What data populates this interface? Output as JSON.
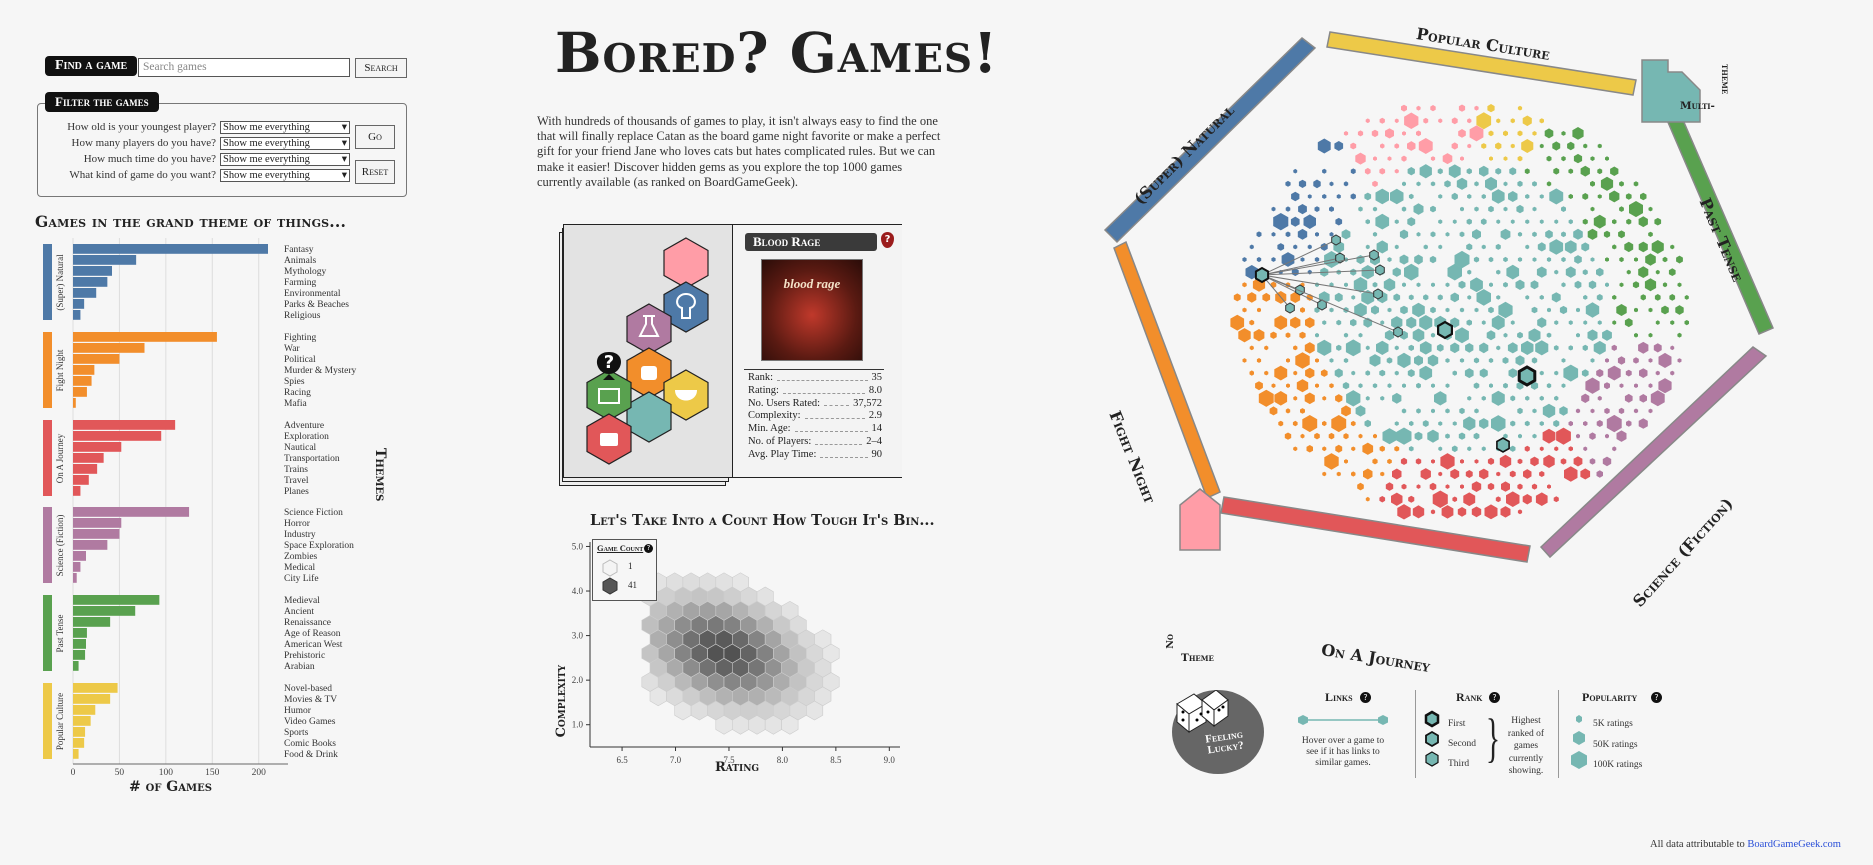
{
  "finder": {
    "button": "Find a game",
    "search_placeholder": "Search games",
    "search_button": "Search"
  },
  "filter": {
    "title": "Filter the games",
    "questions": [
      {
        "label": "How old is your youngest player?",
        "value": "Show me everything"
      },
      {
        "label": "How many players do you have?",
        "value": "Show me everything"
      },
      {
        "label": "How much time do you have?",
        "value": "Show me everything"
      },
      {
        "label": "What kind of game do you want?",
        "value": "Show me everything"
      }
    ],
    "go": "Go",
    "reset": "Reset"
  },
  "themes_chart": {
    "title": "Games in the grand theme of things...",
    "xlabel": "# of Games",
    "side_label": "Themes",
    "ticks": [
      "0",
      "50",
      "100",
      "150",
      "200"
    ]
  },
  "header": {
    "title": "Bored? Games!",
    "intro": "With hundreds of thousands of games to play, it isn't always easy to find the one that will finally replace Catan as the board game night favorite or make a perfect gift for your friend Jane who loves cats but hates complicated rules. But we can make it easier! Discover hidden gems as you explore the top 1000 games currently available (as ranked on BoardGameGeek)."
  },
  "card": {
    "game": "Blood Rage",
    "cover_text": "blood rage",
    "stats": [
      {
        "k": "Rank:",
        "v": "35"
      },
      {
        "k": "Rating:",
        "v": "8.0"
      },
      {
        "k": "No. Users Rated:",
        "v": "37,572"
      },
      {
        "k": "Complexity:",
        "v": "2.9"
      },
      {
        "k": "Min. Age:",
        "v": "14"
      },
      {
        "k": "No. of Players:",
        "v": "2–4"
      },
      {
        "k": "Avg. Play Time:",
        "v": "90"
      }
    ],
    "qmark": "?"
  },
  "hex_chart": {
    "title": "Let's Take Into a Count How Tough It's Bin...",
    "xlabel": "Rating",
    "ylabel": "Complexity",
    "xticks": [
      "6.5",
      "7.0",
      "7.5",
      "8.0",
      "8.5",
      "9.0"
    ],
    "yticks": [
      "1.0",
      "2.0",
      "3.0",
      "4.0",
      "5.0"
    ],
    "legend_title": "Game Count",
    "legend_min": "1",
    "legend_max": "41"
  },
  "ring": {
    "labels": {
      "popular": "Popular Culture",
      "supernatural": "(Super) Natural",
      "past": "Past Tense",
      "fight": "Fight Night",
      "journey": "On A Journey",
      "scifi": "Science (Fiction)",
      "multi_a": "Multi-",
      "multi_b": "theme",
      "no_a": "No",
      "no_b": "Theme"
    }
  },
  "legend": {
    "lucky_a": "Feeling",
    "lucky_b": "Lucky?",
    "links_title": "Links",
    "links_desc": "Hover over a game to see if it has links to similar games.",
    "rank_title": "Rank",
    "rank_items": [
      "First",
      "Second",
      "Third"
    ],
    "rank_desc": "Highest ranked of games currently showing.",
    "pop_title": "Popularity",
    "pop_items": [
      "5K ratings",
      "50K ratings",
      "100K ratings"
    ]
  },
  "footer": {
    "text": "All data attributable to ",
    "link": "BoardGameGeek.com"
  },
  "chart_data": {
    "type": "bar",
    "title": "Games in the grand theme of things...",
    "xlabel": "# of Games",
    "ylabel": "Themes",
    "xlim": [
      0,
      220
    ],
    "groups": [
      {
        "name": "(Super) Natural",
        "color": "#4e79a7",
        "categories": [
          "Fantasy",
          "Animals",
          "Mythology",
          "Farming",
          "Environmental",
          "Parks & Beaches",
          "Religious"
        ],
        "values": [
          210,
          68,
          42,
          37,
          25,
          12,
          8
        ]
      },
      {
        "name": "Fight Night",
        "color": "#f28e2b",
        "categories": [
          "Fighting",
          "War",
          "Political",
          "Murder & Mystery",
          "Spies",
          "Racing",
          "Mafia"
        ],
        "values": [
          155,
          77,
          50,
          23,
          20,
          15,
          3
        ]
      },
      {
        "name": "On A Journey",
        "color": "#e15759",
        "categories": [
          "Adventure",
          "Exploration",
          "Nautical",
          "Transportation",
          "Trains",
          "Travel",
          "Planes"
        ],
        "values": [
          110,
          95,
          52,
          33,
          26,
          17,
          8
        ]
      },
      {
        "name": "Science (Fiction)",
        "color": "#b07aa1",
        "categories": [
          "Science Fiction",
          "Horror",
          "Industry",
          "Space Exploration",
          "Zombies",
          "Medical",
          "City Life"
        ],
        "values": [
          125,
          52,
          50,
          37,
          14,
          8,
          4
        ]
      },
      {
        "name": "Past Tense",
        "color": "#59a14f",
        "categories": [
          "Medieval",
          "Ancient",
          "Renaissance",
          "Age of Reason",
          "American West",
          "Prehistoric",
          "Arabian"
        ],
        "values": [
          93,
          67,
          40,
          15,
          14,
          13,
          6
        ]
      },
      {
        "name": "Popular Culture",
        "color": "#edc948",
        "categories": [
          "Novel-based",
          "Movies & TV",
          "Humor",
          "Video Games",
          "Sports",
          "Comic Books",
          "Food & Drink"
        ],
        "values": [
          48,
          40,
          24,
          19,
          13,
          12,
          6
        ]
      }
    ]
  }
}
